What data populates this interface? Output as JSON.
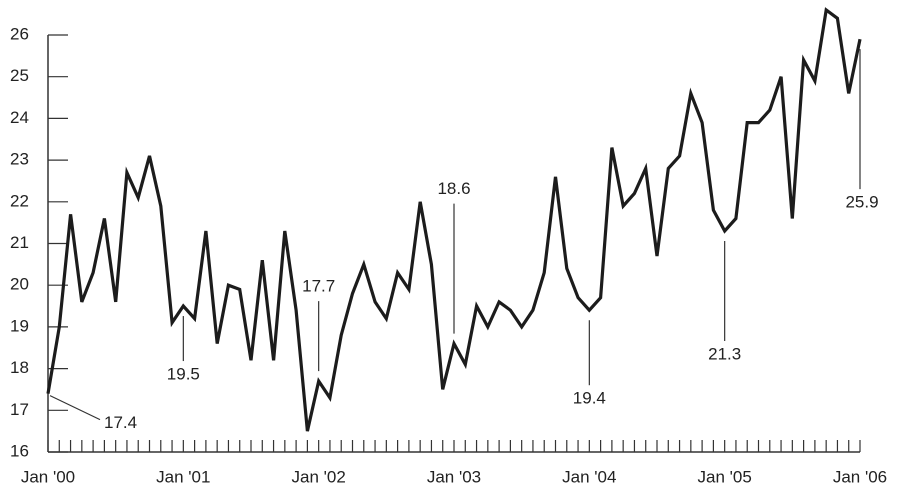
{
  "chart_data": {
    "type": "line",
    "categories": [
      "Jan '00",
      null,
      null,
      null,
      null,
      null,
      null,
      null,
      null,
      null,
      null,
      null,
      "Jan '01",
      null,
      null,
      null,
      null,
      null,
      null,
      null,
      null,
      null,
      null,
      null,
      "Jan '02",
      null,
      null,
      null,
      null,
      null,
      null,
      null,
      null,
      null,
      null,
      null,
      "Jan '03",
      null,
      null,
      null,
      null,
      null,
      null,
      null,
      null,
      null,
      null,
      null,
      "Jan '04",
      null,
      null,
      null,
      null,
      null,
      null,
      null,
      null,
      null,
      null,
      null,
      "Jan '05",
      null,
      null,
      null,
      null,
      null,
      null,
      null,
      null,
      null,
      null,
      null,
      "Jan '06"
    ],
    "values": [
      17.4,
      19.0,
      21.7,
      19.6,
      20.3,
      21.6,
      19.6,
      22.7,
      22.1,
      23.1,
      21.9,
      19.1,
      19.5,
      19.2,
      21.3,
      18.6,
      20.0,
      19.9,
      18.2,
      20.6,
      18.2,
      21.3,
      19.4,
      16.5,
      17.7,
      17.3,
      18.8,
      19.8,
      20.5,
      19.6,
      19.2,
      20.3,
      19.9,
      22.0,
      20.5,
      17.5,
      18.6,
      18.1,
      19.5,
      19.0,
      19.6,
      19.4,
      19.0,
      19.4,
      20.3,
      22.6,
      20.4,
      19.7,
      19.4,
      19.7,
      23.3,
      21.9,
      22.2,
      22.8,
      20.7,
      22.8,
      23.1,
      24.6,
      23.9,
      21.8,
      21.3,
      21.6,
      23.9,
      23.9,
      24.2,
      25.0,
      21.6,
      25.4,
      24.9,
      26.6,
      26.4,
      24.6,
      25.9
    ],
    "value_labels": [
      "17.4",
      null,
      null,
      null,
      null,
      null,
      null,
      null,
      null,
      null,
      null,
      null,
      "19.5",
      null,
      null,
      null,
      null,
      null,
      null,
      null,
      null,
      null,
      null,
      null,
      "17.7",
      null,
      null,
      null,
      null,
      null,
      null,
      null,
      null,
      null,
      null,
      null,
      "18.6",
      null,
      null,
      null,
      null,
      null,
      null,
      null,
      null,
      null,
      null,
      null,
      "19.4",
      null,
      null,
      null,
      null,
      null,
      null,
      null,
      null,
      null,
      null,
      null,
      "21.3",
      null,
      null,
      null,
      null,
      null,
      null,
      null,
      null,
      null,
      null,
      null,
      "25.9"
    ],
    "color": "#1c1c1c",
    "ylim": [
      16,
      26.8
    ],
    "yticks": [
      16,
      17,
      18,
      19,
      20,
      21,
      22,
      23,
      24,
      25,
      26
    ]
  }
}
